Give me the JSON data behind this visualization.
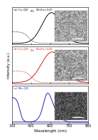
{
  "title_a": "(a) Cu-QD",
  "title_a_sub": "ZIS",
  "title_a_suffix": " (Zn/In=1/2)",
  "title_b": "(b) Cu-QD",
  "title_b_sub": "ZIS",
  "title_b_suffix": " (Zn/In=1/4)",
  "title_c": "(c) Mn-QD",
  "xlabel": "Wavelength (nm)",
  "ylabel": "Intensity (a.u.)",
  "xmin": 300,
  "xmax": 900,
  "color_a": "#111111",
  "color_b": "#cc2222",
  "color_c": "#2222bb",
  "bg_color": "#ffffff",
  "panel_bg": "#f0f0f0",
  "em_peak_a": 610,
  "em_peak_b": 615,
  "em_peak_c1": 575,
  "em_peak_c2": 600,
  "abs_onset_a": 430,
  "abs_onset_b": 450,
  "abs_onset_c": 360,
  "xticks": [
    300,
    450,
    600,
    750,
    900
  ],
  "xticklabels": [
    "300",
    "450",
    "600",
    "750",
    "900"
  ]
}
